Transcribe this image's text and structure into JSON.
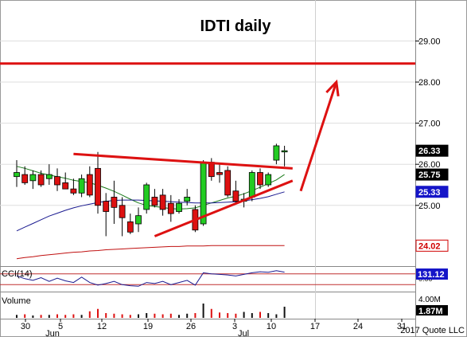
{
  "chart_data": [
    {
      "type": "candlestick",
      "panel": "price",
      "title": "IDTI daily",
      "y_axis_ticks": [
        "29.00",
        "28.00",
        "27.00",
        "26.00",
        "25.00"
      ],
      "ylim": [
        23.6,
        29.9
      ],
      "x_ticks": [
        "30",
        "5",
        "12",
        "19",
        "26",
        "3",
        "10",
        "17",
        "24",
        "31"
      ],
      "month_labels": [
        "Jun",
        "Jul"
      ],
      "candles": [
        {
          "o": 25.7,
          "h": 26.1,
          "l": 25.45,
          "c": 25.8
        },
        {
          "o": 25.75,
          "h": 25.95,
          "l": 25.5,
          "c": 25.55
        },
        {
          "o": 25.6,
          "h": 25.85,
          "l": 25.4,
          "c": 25.75
        },
        {
          "o": 25.75,
          "h": 25.85,
          "l": 25.45,
          "c": 25.5
        },
        {
          "o": 25.65,
          "h": 26.0,
          "l": 25.5,
          "c": 25.75
        },
        {
          "o": 25.7,
          "h": 25.9,
          "l": 25.35,
          "c": 25.5
        },
        {
          "o": 25.55,
          "h": 25.8,
          "l": 25.4,
          "c": 25.4
        },
        {
          "o": 25.4,
          "h": 25.65,
          "l": 25.25,
          "c": 25.3
        },
        {
          "o": 25.3,
          "h": 25.75,
          "l": 25.2,
          "c": 25.65
        },
        {
          "o": 25.75,
          "h": 25.95,
          "l": 25.2,
          "c": 25.25
        },
        {
          "o": 25.9,
          "h": 26.3,
          "l": 24.8,
          "c": 25.0
        },
        {
          "o": 25.1,
          "h": 25.3,
          "l": 24.25,
          "c": 24.85
        },
        {
          "o": 25.2,
          "h": 25.6,
          "l": 24.55,
          "c": 24.95
        },
        {
          "o": 25.0,
          "h": 25.2,
          "l": 24.25,
          "c": 24.7
        },
        {
          "o": 24.6,
          "h": 24.8,
          "l": 24.3,
          "c": 24.35
        },
        {
          "o": 24.55,
          "h": 24.95,
          "l": 24.35,
          "c": 24.75
        },
        {
          "o": 24.9,
          "h": 25.55,
          "l": 24.8,
          "c": 25.5
        },
        {
          "o": 25.2,
          "h": 25.4,
          "l": 24.95,
          "c": 25.0
        },
        {
          "o": 25.25,
          "h": 25.4,
          "l": 24.75,
          "c": 24.9
        },
        {
          "o": 25.05,
          "h": 25.25,
          "l": 24.6,
          "c": 24.8
        },
        {
          "o": 24.85,
          "h": 25.15,
          "l": 24.8,
          "c": 25.05
        },
        {
          "o": 25.1,
          "h": 25.4,
          "l": 25.0,
          "c": 25.2
        },
        {
          "o": 24.9,
          "h": 25.0,
          "l": 24.35,
          "c": 24.4
        },
        {
          "o": 24.55,
          "h": 26.1,
          "l": 24.5,
          "c": 26.05
        },
        {
          "o": 26.05,
          "h": 26.15,
          "l": 25.6,
          "c": 25.7
        },
        {
          "o": 25.8,
          "h": 26.0,
          "l": 25.55,
          "c": 25.75
        },
        {
          "o": 25.85,
          "h": 25.95,
          "l": 25.2,
          "c": 25.25
        },
        {
          "o": 25.35,
          "h": 25.6,
          "l": 25.05,
          "c": 25.1
        },
        {
          "o": 25.1,
          "h": 25.3,
          "l": 24.95,
          "c": 25.15
        },
        {
          "o": 25.2,
          "h": 25.85,
          "l": 25.1,
          "c": 25.8
        },
        {
          "o": 25.8,
          "h": 25.9,
          "l": 25.4,
          "c": 25.5
        },
        {
          "o": 25.5,
          "h": 25.8,
          "l": 25.45,
          "c": 25.75
        },
        {
          "o": 26.1,
          "h": 26.5,
          "l": 26.0,
          "c": 26.45
        },
        {
          "o": 26.3,
          "h": 26.45,
          "l": 25.95,
          "c": 26.33
        }
      ],
      "moving_averages": [
        {
          "name": "ma-short",
          "color": "#1a7a1a",
          "values": [
            25.95,
            25.9,
            25.84,
            25.78,
            25.74,
            25.7,
            25.66,
            25.61,
            25.58,
            25.55,
            25.49,
            25.42,
            25.34,
            25.25,
            25.15,
            25.06,
            25.0,
            24.97,
            24.95,
            24.92,
            24.91,
            24.92,
            24.94,
            25.0,
            25.06,
            25.12,
            25.18,
            25.22,
            25.28,
            25.36,
            25.44,
            25.53,
            25.62,
            25.75
          ]
        },
        {
          "name": "ma-mid",
          "color": "#1a1a90",
          "values": [
            24.38,
            24.47,
            24.56,
            24.65,
            24.74,
            24.81,
            24.88,
            24.94,
            24.99,
            25.03,
            25.07,
            25.1,
            25.12,
            25.13,
            25.13,
            25.13,
            25.12,
            25.11,
            25.1,
            25.09,
            25.08,
            25.07,
            25.06,
            25.06,
            25.06,
            25.07,
            25.08,
            25.09,
            25.11,
            25.14,
            25.17,
            25.21,
            25.27,
            25.33
          ]
        },
        {
          "name": "ma-long",
          "color": "#c01010",
          "values": [
            23.7,
            23.73,
            23.75,
            23.78,
            23.8,
            23.82,
            23.84,
            23.86,
            23.87,
            23.89,
            23.9,
            23.92,
            23.93,
            23.94,
            23.95,
            23.96,
            23.97,
            23.98,
            23.99,
            24.0,
            24.0,
            24.01,
            24.01,
            24.01,
            24.02,
            24.02,
            24.02,
            24.02,
            24.02,
            24.02,
            24.02,
            24.02,
            24.02,
            24.02
          ]
        }
      ],
      "horizontal_line": 28.45,
      "trendlines": [
        {
          "name": "upper-triangle-line",
          "from": {
            "i": 7,
            "y": 26.25
          },
          "to": {
            "i": 34,
            "y": 25.9
          }
        },
        {
          "name": "lower-triangle-line",
          "from": {
            "i": 17,
            "y": 24.25
          },
          "to": {
            "i": 34,
            "y": 25.6
          }
        }
      ],
      "arrow": {
        "from": {
          "i": 35,
          "y": 25.35
        },
        "to": {
          "i": 39,
          "y": 28.0
        }
      },
      "price_labels": [
        {
          "text": "26.33",
          "style": "black"
        },
        {
          "text": "25.75",
          "style": "black"
        },
        {
          "text": "25.33",
          "style": "blue"
        },
        {
          "text": "24.02",
          "style": "red"
        }
      ],
      "colors": {
        "up": "#22cc22",
        "down": "#dd1111",
        "trend": "#dd1111",
        "grid": "#dddddd"
      }
    },
    {
      "type": "line",
      "panel": "indicator",
      "label": "CCI(14)",
      "value_label": "131.12",
      "hidden_tick": "0.00",
      "ylim": [
        -200,
        200
      ],
      "levels": [
        100,
        -100
      ],
      "values": [
        60,
        10,
        -20,
        30,
        -40,
        20,
        -30,
        -60,
        40,
        -60,
        -110,
        -80,
        -40,
        -100,
        -120,
        -130,
        -60,
        -80,
        -40,
        -100,
        -60,
        -20,
        -110,
        120,
        100,
        90,
        80,
        60,
        90,
        120,
        140,
        130,
        160,
        131.12
      ]
    },
    {
      "type": "bar",
      "panel": "volume",
      "label": "Volume",
      "tick": "4.00M",
      "value_label": "1.87M",
      "ylim": [
        0,
        4
      ],
      "values": [
        0.5,
        0.6,
        0.4,
        0.5,
        0.5,
        0.6,
        0.5,
        0.6,
        0.5,
        1.1,
        1.5,
        0.8,
        0.7,
        0.6,
        0.5,
        0.6,
        0.8,
        0.7,
        0.6,
        0.7,
        0.5,
        0.7,
        0.8,
        2.4,
        1.5,
        0.9,
        0.8,
        0.7,
        1.0,
        0.8,
        1.0,
        0.8,
        0.6,
        1.87
      ],
      "up": [
        true,
        false,
        true,
        false,
        true,
        false,
        false,
        false,
        true,
        false,
        false,
        false,
        false,
        false,
        false,
        true,
        true,
        false,
        false,
        false,
        true,
        true,
        false,
        true,
        false,
        false,
        false,
        false,
        true,
        true,
        false,
        true,
        true,
        true
      ]
    }
  ],
  "footer": {
    "copyright": "2017 Quote LLC"
  }
}
